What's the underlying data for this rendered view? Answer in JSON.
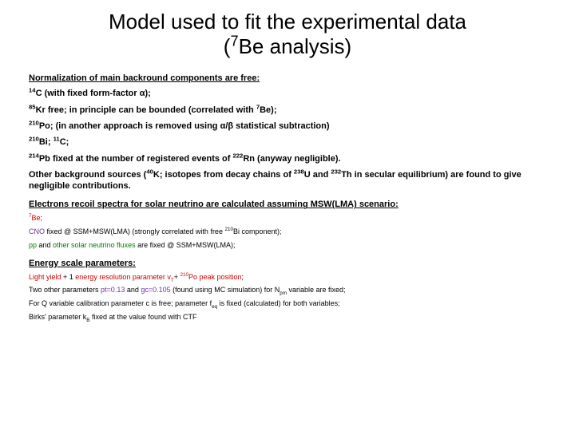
{
  "title_l1": "Model used to fit the experimental data",
  "title_l2_a": "(",
  "title_l2_b": "Be analysis)",
  "sup7": "7",
  "sec1": "Normalization of main backround components are free:",
  "l1a": "14",
  "l1b": "C (with fixed form-factor  α);",
  "l2a": "85",
  "l2b": "Kr free; in principle can be bounded (correlated with ",
  "l2c": "7",
  "l2d": "Be);",
  "l3a": "210",
  "l3b": "Po;  (in another approach is removed using α/β statistical subtraction)",
  "l4a": "210",
  "l4b": "Bi; ",
  "l4c": "11",
  "l4d": "C;",
  "l5a": "214",
  "l5b": "Pb fixed at the number of registered events of  ",
  "l5c": "222",
  "l5d": "Rn (anyway negligible).",
  "l6a": "Other background sources (",
  "l6b": "40",
  "l6c": "K; isotopes from decay chains of  ",
  "l6d": "238",
  "l6e": "U and ",
  "l6f": "232",
  "l6g": "Th in secular equilibrium) are found to give negligible contributions.",
  "sec2": "Electrons recoil spectra for solar neutrino are calculated assuming MSW(LMA) scenario:",
  "s1a": "7",
  "s1b": "Be",
  "s1c": ";",
  "s2a": "CNO",
  "s2b": " fixed @ SSM+MSW(LMA) (strongly correlated with free ",
  "s2c": "210",
  "s2d": "Bi component);",
  "s3a": "pp",
  "s3b": " and ",
  "s3c": "other solar neutrino fluxes",
  "s3d": " are fixed @ SSM+MSW(LMA);",
  "sec3": "Energy scale parameters:",
  "e1a": "Light yield",
  "e1b": " + 1 ",
  "e1c": "energy resolution parameter v",
  "e1d": "T",
  "e1e": "+ ",
  "e1f": "210",
  "e1g": "Po peak position",
  "e1h": ";",
  "e2a": "Two other parameters ",
  "e2b": "pt=0.13",
  "e2c": " and ",
  "e2d": "gc=0.105",
  "e2e": " (found using MC simulation) for N",
  "e2f": "pm",
  "e2g": " variable are fixed;",
  "e3a": "For Q variable calibration parameter c is free; parameter f",
  "e3b": "eq",
  "e3c": " is fixed (calculated) for both variables;",
  "e4a": "Birks' parameter k",
  "e4b": "B",
  "e4c": " fixed at the value found with CTF",
  "colors": {
    "text": "#000000",
    "red": "#cc0000",
    "purple": "#7030a0",
    "green": "#008000",
    "background": "#ffffff"
  },
  "fontsize": {
    "title": 26,
    "body": 11,
    "small": 9
  }
}
